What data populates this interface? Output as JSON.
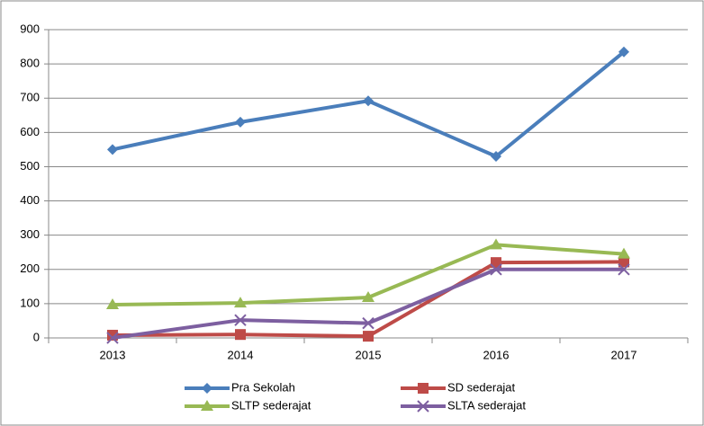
{
  "chart_data": {
    "type": "line",
    "categories": [
      "2013",
      "2014",
      "2015",
      "2016",
      "2017"
    ],
    "series": [
      {
        "name": "Pra Sekolah",
        "color": "#4a7ebb",
        "marker": "diamond",
        "values": [
          550,
          630,
          692,
          530,
          835
        ]
      },
      {
        "name": "SD sederajat",
        "color": "#be4b48",
        "marker": "square",
        "values": [
          8,
          10,
          5,
          220,
          222
        ]
      },
      {
        "name": "SLTP sederajat",
        "color": "#98b954",
        "marker": "triangle",
        "values": [
          97,
          102,
          118,
          272,
          245
        ]
      },
      {
        "name": "SLTA sederajat",
        "color": "#7d5fa0",
        "marker": "x",
        "values": [
          0,
          52,
          43,
          200,
          200
        ]
      }
    ],
    "ylim": [
      0,
      900
    ],
    "yticks": [
      0,
      100,
      200,
      300,
      400,
      500,
      600,
      700,
      800,
      900
    ],
    "grid": true,
    "legend": "bottom"
  }
}
